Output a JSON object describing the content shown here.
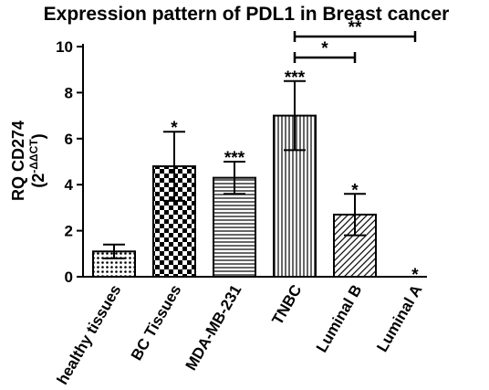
{
  "chart_data": {
    "type": "bar",
    "title": "Expression pattern of PDL1 in Breast cancer",
    "ylabel_line1": "RQ CD274",
    "ylabel_line2_prefix": "(2",
    "ylabel_line2_sup": "-ΔΔCT",
    "ylabel_line2_suffix": ")",
    "ylim": [
      0,
      10
    ],
    "yticks": [
      "0",
      "2",
      "4",
      "6",
      "8",
      "10"
    ],
    "categories": [
      "healthy tissues",
      "BC Tissues",
      "MDA-MB-231",
      "TNBC",
      "Luminal B",
      "Luminal A"
    ],
    "values": [
      1.1,
      4.8,
      4.3,
      7.0,
      2.7,
      0.0
    ],
    "errors": [
      0.3,
      1.5,
      0.7,
      1.5,
      0.9,
      0.0
    ],
    "patterns": [
      "dots",
      "checker",
      "hlines",
      "vlines",
      "diag",
      "none"
    ],
    "significance": [
      "",
      "*",
      "***",
      "***",
      "*",
      "*"
    ],
    "comparisons": [
      {
        "from": "TNBC",
        "to": "Luminal B",
        "label": "*"
      },
      {
        "from": "TNBC",
        "to": "Luminal A",
        "label": "**"
      }
    ],
    "grid": false
  }
}
